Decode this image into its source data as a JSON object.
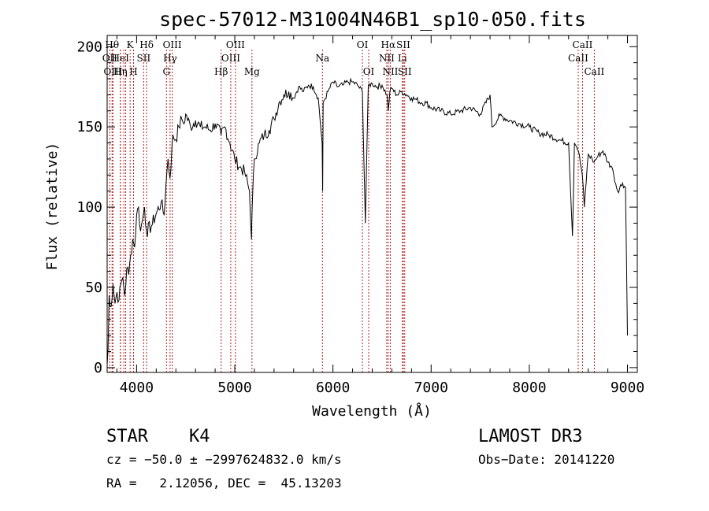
{
  "chart_data": {
    "type": "line",
    "title": "spec-57012-M31004N46B1_sp10-050.fits",
    "xlabel": "Wavelength (Å)",
    "ylabel": "Flux (relative)",
    "xlim": [
      3700,
      9100
    ],
    "ylim": [
      -3,
      207
    ],
    "x_ticks": [
      4000,
      5000,
      6000,
      7000,
      8000,
      9000
    ],
    "y_ticks": [
      0,
      50,
      100,
      150,
      200
    ],
    "grid": false,
    "series": [
      {
        "x": [
          3700,
          3710,
          3720,
          3740,
          3760,
          3780,
          3800,
          3820,
          3840,
          3860,
          3880,
          3900,
          3920,
          3940,
          3960,
          3980,
          4000,
          4020,
          4040,
          4060,
          4080,
          4100,
          4150,
          4200,
          4250,
          4280,
          4300,
          4320,
          4340,
          4370,
          4400,
          4430,
          4460,
          4480,
          4500,
          4550,
          4600,
          4650,
          4700,
          4750,
          4800,
          4860,
          4900,
          4950,
          5000,
          5050,
          5100,
          5150,
          5170,
          5180,
          5200,
          5250,
          5300,
          5350,
          5400,
          5450,
          5500,
          5550,
          5600,
          5650,
          5700,
          5750,
          5800,
          5850,
          5890,
          5895,
          5900,
          5950,
          6000,
          6050,
          6100,
          6150,
          6200,
          6250,
          6300,
          6330,
          6360,
          6400,
          6450,
          6500,
          6550,
          6563,
          6580,
          6600,
          6650,
          6700,
          6750,
          6800,
          6850,
          6900,
          6950,
          7000,
          7100,
          7200,
          7300,
          7400,
          7500,
          7600,
          7620,
          7700,
          7800,
          7900,
          8000,
          8100,
          8200,
          8300,
          8400,
          8440,
          8460,
          8480,
          8500,
          8540,
          8560,
          8600,
          8640,
          8660,
          8700,
          8750,
          8800,
          8840,
          8860,
          8900,
          8950,
          8980,
          9000
        ],
        "y": [
          2,
          12,
          45,
          38,
          52,
          40,
          47,
          42,
          52,
          56,
          45,
          62,
          58,
          70,
          80,
          75,
          95,
          100,
          85,
          92,
          100,
          85,
          88,
          96,
          103,
          95,
          115,
          130,
          118,
          145,
          142,
          150,
          155,
          152,
          158,
          150,
          154,
          150,
          150,
          148,
          152,
          145,
          150,
          140,
          130,
          125,
          122,
          110,
          80,
          105,
          130,
          140,
          145,
          148,
          155,
          165,
          170,
          172,
          168,
          175,
          172,
          176,
          175,
          168,
          140,
          110,
          165,
          172,
          178,
          175,
          176,
          178,
          178,
          176,
          172,
          90,
          176,
          177,
          175,
          176,
          170,
          160,
          172,
          174,
          170,
          172,
          170,
          168,
          167,
          165,
          165,
          162,
          160,
          158,
          160,
          162,
          158,
          170,
          150,
          157,
          154,
          152,
          150,
          146,
          145,
          142,
          140,
          82,
          140,
          138,
          135,
          120,
          100,
          133,
          130,
          128,
          132,
          135,
          128,
          125,
          120,
          110,
          115,
          112,
          20
        ]
      }
    ],
    "spectral_lines": [
      {
        "wl": 3727,
        "label": "OII",
        "row": 1
      },
      {
        "wl": 3750,
        "label": "Hθ",
        "row": 0
      },
      {
        "wl": 3760,
        "label": "OIII",
        "row": 2
      },
      {
        "wl": 3835,
        "label": "HeI",
        "row": 1
      },
      {
        "wl": 3835,
        "label": "Hη",
        "row": 2
      },
      {
        "wl": 3870,
        "label": "",
        "row": 0
      },
      {
        "wl": 3889,
        "label": "",
        "row": 0
      },
      {
        "wl": 3934,
        "label": "K",
        "row": 0
      },
      {
        "wl": 3969,
        "label": "H",
        "row": 2
      },
      {
        "wl": 4072,
        "label": "SII",
        "row": 1
      },
      {
        "wl": 4102,
        "label": "Hδ",
        "row": 0
      },
      {
        "wl": 4304,
        "label": "G",
        "row": 2
      },
      {
        "wl": 4341,
        "label": "Hγ",
        "row": 1
      },
      {
        "wl": 4363,
        "label": "OIII",
        "row": 0
      },
      {
        "wl": 4861,
        "label": "Hβ",
        "row": 2
      },
      {
        "wl": 4959,
        "label": "OIII",
        "row": 1
      },
      {
        "wl": 5007,
        "label": "OIII",
        "row": 0
      },
      {
        "wl": 5175,
        "label": "Mg",
        "row": 2
      },
      {
        "wl": 5893,
        "label": "Na",
        "row": 1
      },
      {
        "wl": 6300,
        "label": "OI",
        "row": 0
      },
      {
        "wl": 6364,
        "label": "OI",
        "row": 2
      },
      {
        "wl": 6548,
        "label": "NII",
        "row": 1
      },
      {
        "wl": 6563,
        "label": "Hα",
        "row": 0
      },
      {
        "wl": 6584,
        "label": "NII",
        "row": 2
      },
      {
        "wl": 6707,
        "label": "Li",
        "row": 1
      },
      {
        "wl": 6717,
        "label": "SII",
        "row": 0
      },
      {
        "wl": 6731,
        "label": "SII",
        "row": 2
      },
      {
        "wl": 8498,
        "label": "CaII",
        "row": 1
      },
      {
        "wl": 8542,
        "label": "CaII",
        "row": 0
      },
      {
        "wl": 8662,
        "label": "CaII",
        "row": 2
      }
    ],
    "line_color": "#000000",
    "marker_color": "#b22222"
  },
  "info": {
    "class": "STAR",
    "subclass": "K4",
    "survey": "LAMOST DR3",
    "cz": "cz = −50.0 ± −2997624832.0 km/s",
    "obs_date": "Obs−Date: 20141220",
    "coords": "RA =   2.12056, DEC =  45.13203"
  }
}
